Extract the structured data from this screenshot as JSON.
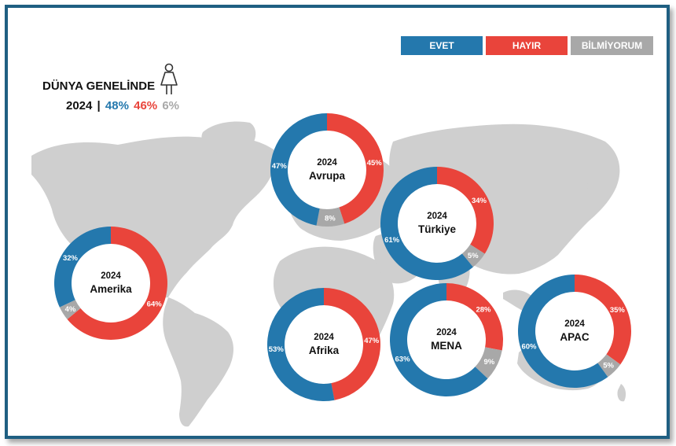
{
  "legend": {
    "yes": {
      "label": "EVET",
      "color": "#2478ad"
    },
    "no": {
      "label": "HAYIR",
      "color": "#e9443b"
    },
    "dk": {
      "label": "BİLMİYORUM",
      "color": "#a8a8a8"
    }
  },
  "world": {
    "title": "DÜNYA GENELİNDE",
    "year": "2024",
    "separator": "|",
    "yes": "48%",
    "no": "46%",
    "dk": "6%"
  },
  "chart_data": {
    "type": "pie",
    "variant": "donut",
    "year": "2024",
    "series_order": [
      "EVET",
      "HAYIR",
      "BİLMİYORUM"
    ],
    "colors": {
      "EVET": "#2478ad",
      "HAYIR": "#e9443b",
      "BİLMİYORUM": "#a8a8a8"
    },
    "world_total": {
      "EVET": 48,
      "HAYIR": 46,
      "BİLMİYORUM": 6
    },
    "regions": [
      {
        "name": "Avrupa",
        "EVET": 47,
        "HAYIR": 45,
        "BİLMİYORUM": 8
      },
      {
        "name": "Türkiye",
        "EVET": 61,
        "HAYIR": 34,
        "BİLMİYORUM": 5
      },
      {
        "name": "Amerika",
        "EVET": 32,
        "HAYIR": 64,
        "BİLMİYORUM": 4
      },
      {
        "name": "Afrika",
        "EVET": 53,
        "HAYIR": 47,
        "BİLMİYORUM": 0
      },
      {
        "name": "MENA",
        "EVET": 63,
        "HAYIR": 28,
        "BİLMİYORUM": 9
      },
      {
        "name": "APAC",
        "EVET": 60,
        "HAYIR": 35,
        "BİLMİYORUM": 5
      }
    ]
  }
}
